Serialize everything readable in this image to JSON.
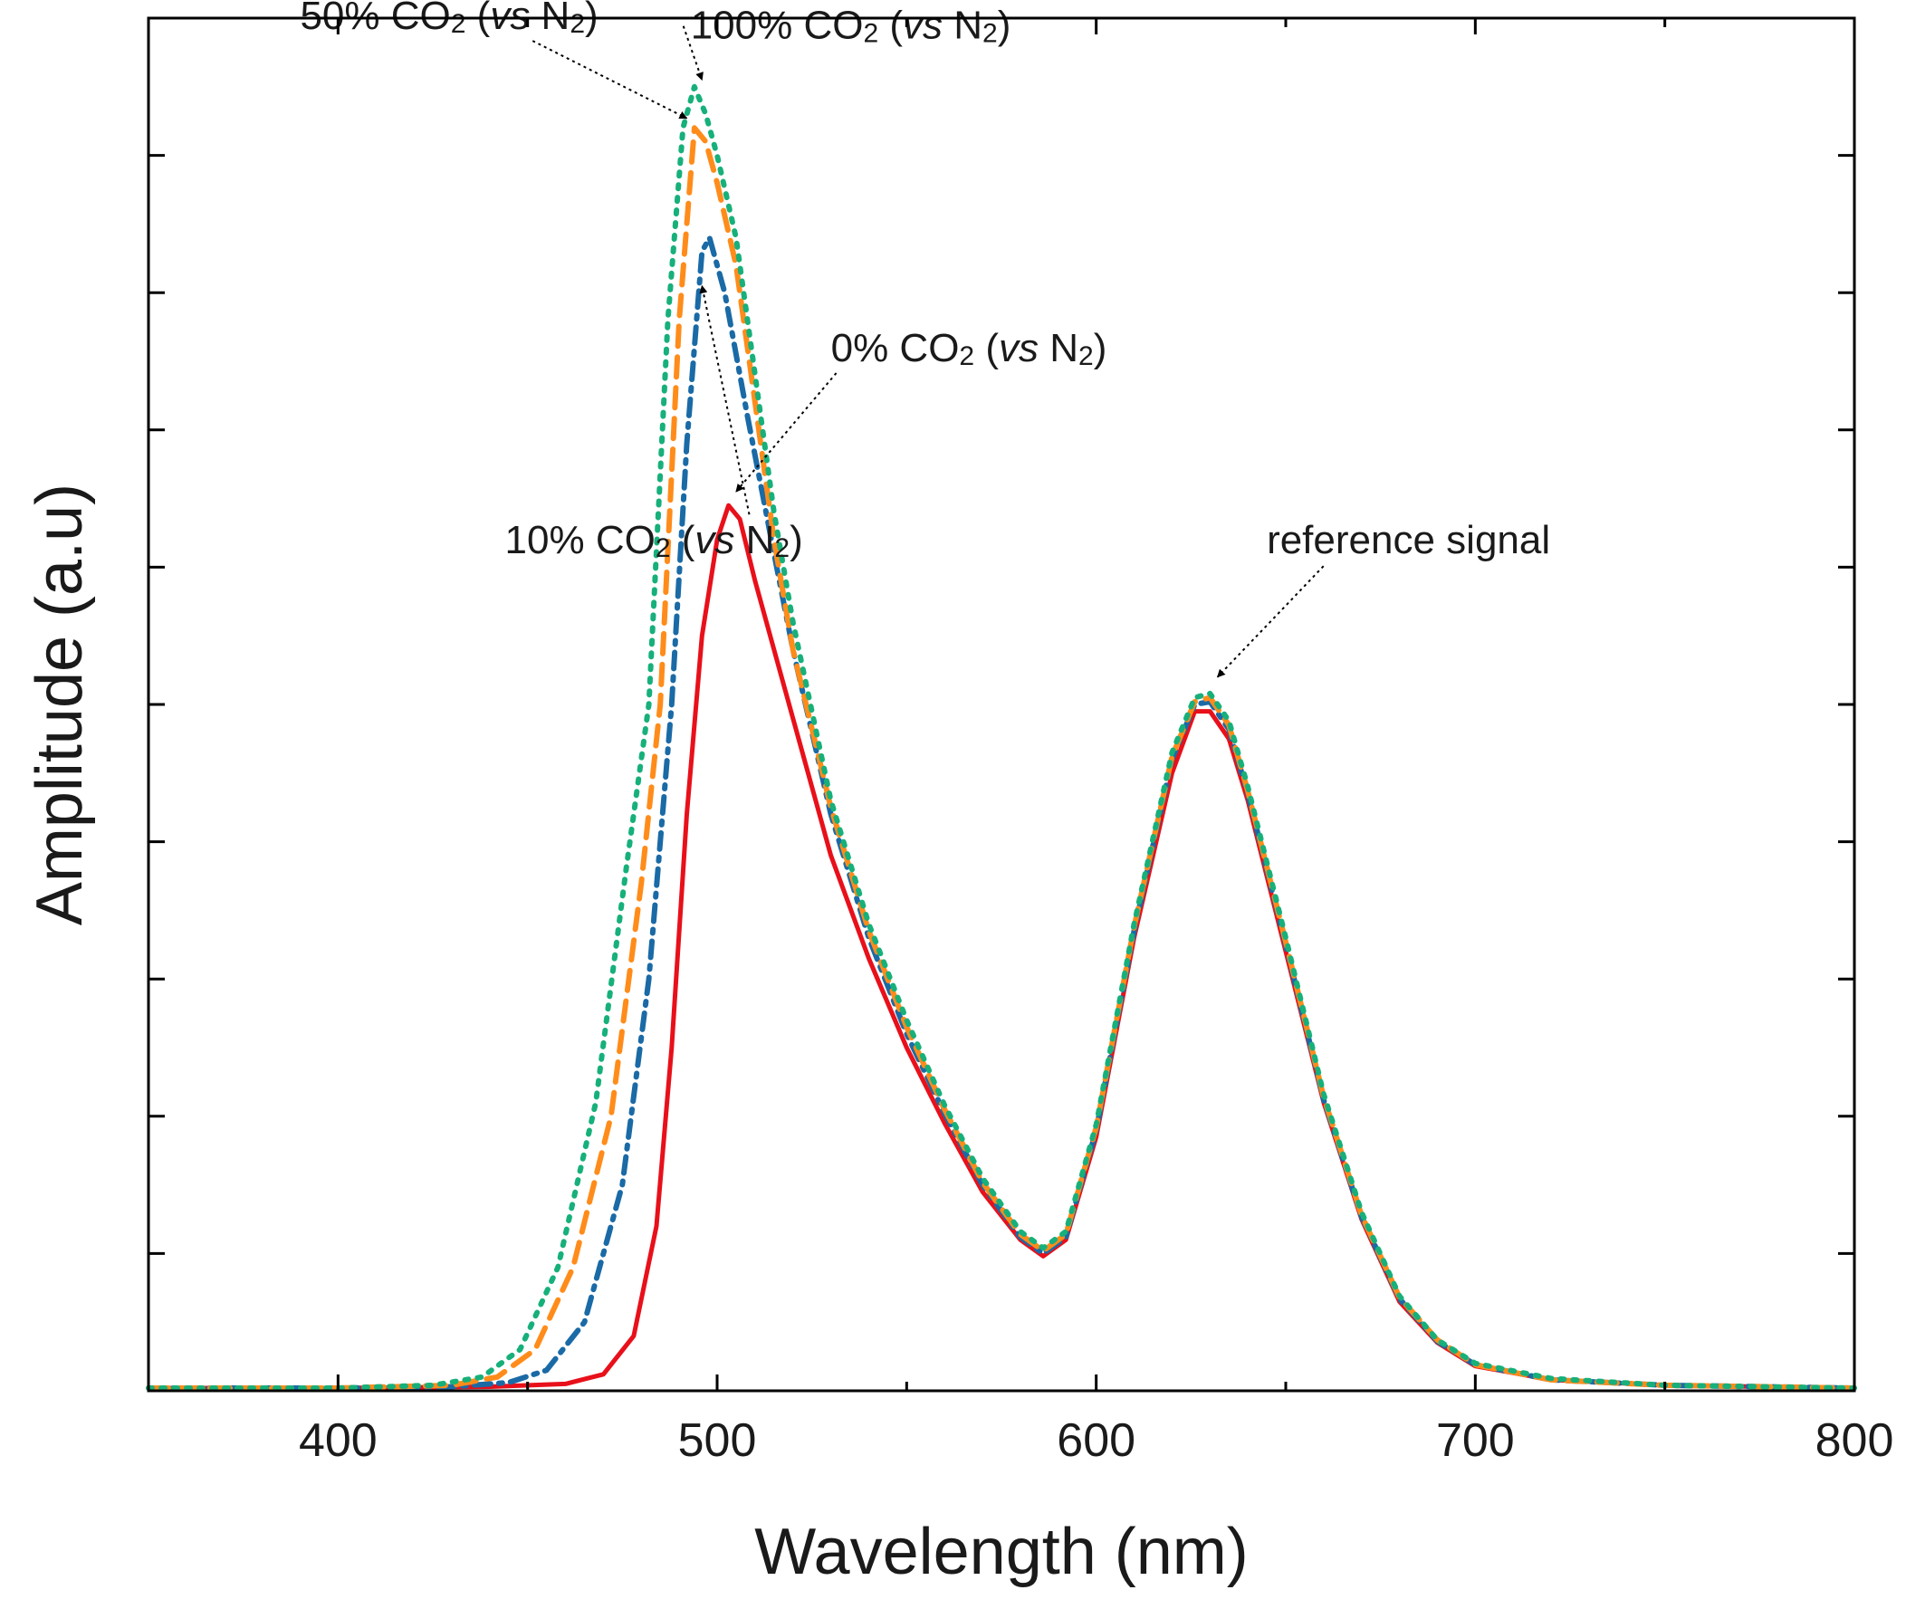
{
  "chart_data": {
    "type": "line",
    "title": "",
    "xlabel": "Wavelength (nm)",
    "ylabel": "Amplitude (a.u)",
    "xlim": [
      350,
      800
    ],
    "ylim": [
      0,
      10
    ],
    "x_ticks": [
      400,
      500,
      600,
      700,
      800
    ],
    "y_ticks_unlabeled": [
      1,
      2,
      3,
      4,
      5,
      6,
      7,
      8,
      9,
      10
    ],
    "grid": false,
    "series": [
      {
        "name": "0% CO2 (vs N2)",
        "color": "#e8101a",
        "style": "solid",
        "points": [
          [
            350,
            0.02
          ],
          [
            400,
            0.02
          ],
          [
            440,
            0.03
          ],
          [
            460,
            0.05
          ],
          [
            470,
            0.12
          ],
          [
            478,
            0.4
          ],
          [
            484,
            1.2
          ],
          [
            488,
            2.5
          ],
          [
            492,
            4.2
          ],
          [
            496,
            5.5
          ],
          [
            500,
            6.2
          ],
          [
            503,
            6.45
          ],
          [
            506,
            6.35
          ],
          [
            510,
            5.9
          ],
          [
            520,
            4.9
          ],
          [
            530,
            3.9
          ],
          [
            540,
            3.15
          ],
          [
            550,
            2.5
          ],
          [
            560,
            1.95
          ],
          [
            570,
            1.45
          ],
          [
            580,
            1.1
          ],
          [
            586,
            0.98
          ],
          [
            592,
            1.1
          ],
          [
            600,
            1.85
          ],
          [
            610,
            3.3
          ],
          [
            620,
            4.5
          ],
          [
            626,
            4.95
          ],
          [
            630,
            4.95
          ],
          [
            635,
            4.75
          ],
          [
            640,
            4.3
          ],
          [
            650,
            3.2
          ],
          [
            660,
            2.1
          ],
          [
            670,
            1.25
          ],
          [
            680,
            0.65
          ],
          [
            690,
            0.35
          ],
          [
            700,
            0.18
          ],
          [
            720,
            0.08
          ],
          [
            750,
            0.04
          ],
          [
            800,
            0.02
          ]
        ]
      },
      {
        "name": "10% CO2 (vs N2)",
        "color": "#1a6aa6",
        "style": "dashdot",
        "points": [
          [
            350,
            0.02
          ],
          [
            400,
            0.02
          ],
          [
            430,
            0.03
          ],
          [
            445,
            0.06
          ],
          [
            455,
            0.15
          ],
          [
            465,
            0.5
          ],
          [
            475,
            1.5
          ],
          [
            482,
            3.0
          ],
          [
            488,
            5.0
          ],
          [
            492,
            6.9
          ],
          [
            496,
            8.3
          ],
          [
            498,
            8.4
          ],
          [
            502,
            8.0
          ],
          [
            508,
            7.1
          ],
          [
            515,
            6.1
          ],
          [
            520,
            5.4
          ],
          [
            530,
            4.2
          ],
          [
            540,
            3.3
          ],
          [
            550,
            2.6
          ],
          [
            560,
            2.02
          ],
          [
            570,
            1.5
          ],
          [
            580,
            1.12
          ],
          [
            586,
            1.0
          ],
          [
            592,
            1.12
          ],
          [
            600,
            1.9
          ],
          [
            610,
            3.35
          ],
          [
            620,
            4.6
          ],
          [
            626,
            5.0
          ],
          [
            630,
            5.02
          ],
          [
            635,
            4.82
          ],
          [
            640,
            4.35
          ],
          [
            650,
            3.25
          ],
          [
            660,
            2.12
          ],
          [
            670,
            1.27
          ],
          [
            680,
            0.67
          ],
          [
            690,
            0.36
          ],
          [
            700,
            0.19
          ],
          [
            720,
            0.08
          ],
          [
            750,
            0.04
          ],
          [
            800,
            0.02
          ]
        ]
      },
      {
        "name": "50% CO2 (vs N2)",
        "color": "#ff8c1a",
        "style": "dashed",
        "points": [
          [
            350,
            0.02
          ],
          [
            400,
            0.02
          ],
          [
            430,
            0.04
          ],
          [
            442,
            0.1
          ],
          [
            452,
            0.3
          ],
          [
            462,
            0.9
          ],
          [
            472,
            2.0
          ],
          [
            480,
            3.7
          ],
          [
            485,
            5.0
          ],
          [
            490,
            7.8
          ],
          [
            494,
            9.2
          ],
          [
            497,
            9.1
          ],
          [
            500,
            8.8
          ],
          [
            505,
            8.2
          ],
          [
            510,
            7.2
          ],
          [
            515,
            6.2
          ],
          [
            520,
            5.4
          ],
          [
            530,
            4.25
          ],
          [
            540,
            3.35
          ],
          [
            550,
            2.65
          ],
          [
            560,
            2.05
          ],
          [
            570,
            1.52
          ],
          [
            580,
            1.14
          ],
          [
            586,
            1.02
          ],
          [
            592,
            1.14
          ],
          [
            600,
            1.92
          ],
          [
            610,
            3.38
          ],
          [
            620,
            4.62
          ],
          [
            626,
            5.02
          ],
          [
            630,
            5.05
          ],
          [
            635,
            4.85
          ],
          [
            640,
            4.37
          ],
          [
            650,
            3.27
          ],
          [
            660,
            2.14
          ],
          [
            670,
            1.28
          ],
          [
            680,
            0.68
          ],
          [
            690,
            0.37
          ],
          [
            700,
            0.19
          ],
          [
            720,
            0.08
          ],
          [
            750,
            0.04
          ],
          [
            800,
            0.02
          ]
        ]
      },
      {
        "name": "100% CO2 (vs N2)",
        "color": "#17b07a",
        "style": "dotted",
        "points": [
          [
            350,
            0.02
          ],
          [
            400,
            0.02
          ],
          [
            425,
            0.04
          ],
          [
            438,
            0.1
          ],
          [
            448,
            0.3
          ],
          [
            458,
            0.9
          ],
          [
            468,
            2.1
          ],
          [
            476,
            3.8
          ],
          [
            482,
            5.0
          ],
          [
            487,
            7.8
          ],
          [
            491,
            9.2
          ],
          [
            494,
            9.5
          ],
          [
            497,
            9.3
          ],
          [
            500,
            9.0
          ],
          [
            505,
            8.4
          ],
          [
            510,
            7.4
          ],
          [
            515,
            6.4
          ],
          [
            520,
            5.6
          ],
          [
            530,
            4.3
          ],
          [
            540,
            3.4
          ],
          [
            550,
            2.7
          ],
          [
            560,
            2.08
          ],
          [
            570,
            1.55
          ],
          [
            580,
            1.16
          ],
          [
            586,
            1.04
          ],
          [
            592,
            1.16
          ],
          [
            600,
            1.94
          ],
          [
            610,
            3.4
          ],
          [
            620,
            4.65
          ],
          [
            626,
            5.05
          ],
          [
            630,
            5.08
          ],
          [
            635,
            4.88
          ],
          [
            640,
            4.4
          ],
          [
            650,
            3.3
          ],
          [
            660,
            2.16
          ],
          [
            670,
            1.3
          ],
          [
            680,
            0.69
          ],
          [
            690,
            0.37
          ],
          [
            700,
            0.2
          ],
          [
            720,
            0.09
          ],
          [
            750,
            0.04
          ],
          [
            800,
            0.02
          ]
        ]
      }
    ],
    "annotations": [
      {
        "id": "a50",
        "parts": [
          [
            "50% CO",
            "n"
          ],
          [
            "2",
            "sub"
          ],
          [
            " (",
            "n"
          ],
          [
            "vs",
            "i"
          ],
          [
            " N",
            "n"
          ],
          [
            "2",
            "sub"
          ],
          [
            ")",
            "n"
          ]
        ],
        "text_x": 390,
        "text_y": 9.92,
        "target_x": 492,
        "target_y": 9.27
      },
      {
        "id": "a100",
        "parts": [
          [
            "100% CO",
            "n"
          ],
          [
            "2",
            "sub"
          ],
          [
            " (",
            "n"
          ],
          [
            "vs",
            "i"
          ],
          [
            " N",
            "n"
          ],
          [
            "2",
            "sub"
          ],
          [
            ")",
            "n"
          ]
        ],
        "text_x": 493,
        "text_y": 9.85,
        "target_x": 496,
        "target_y": 9.55
      },
      {
        "id": "a0",
        "parts": [
          [
            "0% CO",
            "n"
          ],
          [
            "2",
            "sub"
          ],
          [
            " (",
            "n"
          ],
          [
            "vs",
            "i"
          ],
          [
            " N",
            "n"
          ],
          [
            "2",
            "sub"
          ],
          [
            ")",
            "n"
          ]
        ],
        "text_x": 530,
        "text_y": 7.5,
        "target_x": 505,
        "target_y": 6.55
      },
      {
        "id": "a10",
        "parts": [
          [
            "10% CO",
            "n"
          ],
          [
            "2",
            "sub"
          ],
          [
            " (",
            "n"
          ],
          [
            "vs",
            "i"
          ],
          [
            " N",
            "n"
          ],
          [
            "2",
            "sub"
          ],
          [
            ")",
            "n"
          ]
        ],
        "text_x": 444,
        "text_y": 6.1,
        "target_x": 496,
        "target_y": 8.05
      },
      {
        "id": "aref",
        "parts": [
          [
            "reference signal",
            "n"
          ]
        ],
        "text_x": 645,
        "text_y": 6.1,
        "target_x": 632,
        "target_y": 5.2
      }
    ]
  }
}
